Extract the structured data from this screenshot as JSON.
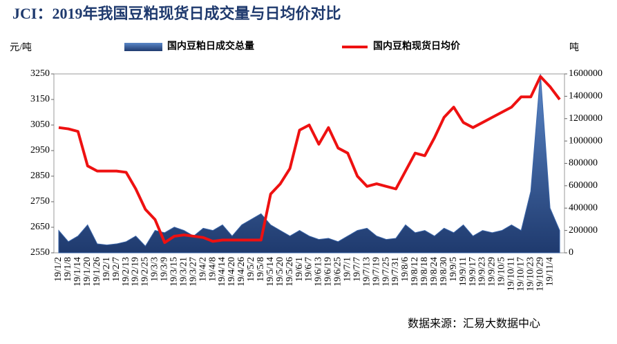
{
  "chart_data": {
    "type": "bar-line",
    "title": "JCI：2019年我国豆粕现货日成交量与日均价对比",
    "y_label": "元/吨",
    "y2_label": "吨",
    "source": "数据来源：汇易大数据中心",
    "categories": [
      "19/1/2",
      "19/1/8",
      "19/1/14",
      "19/1/20",
      "19/1/26",
      "19/2/1",
      "19/2/7",
      "19/2/13",
      "19/2/19",
      "19/2/25",
      "19/3/3",
      "19/3/9",
      "19/3/15",
      "19/3/21",
      "19/3/27",
      "19/4/2",
      "19/4/8",
      "19/4/14",
      "19/4/20",
      "19/4/26",
      "19/5/2",
      "19/5/8",
      "19/5/14",
      "19/5/20",
      "19/5/26",
      "19/6/1",
      "19/6/7",
      "19/6/13",
      "19/6/19",
      "19/6/25",
      "19/7/1",
      "19/7/7",
      "19/7/13",
      "19/7/19",
      "19/7/25",
      "19/7/31",
      "19/8/6",
      "19/8/12",
      "19/8/18",
      "19/8/24",
      "19/8/30",
      "19/9/5",
      "19/9/11",
      "19/9/17",
      "19/9/23",
      "19/9/29",
      "19/10/5",
      "19/10/11",
      "19/10/17",
      "19/10/23",
      "19/10/29",
      "19/11/4",
      null
    ],
    "series": [
      {
        "name": "国内豆粕现货日均价",
        "color": "#ee1111",
        "axis": "y",
        "values": [
          3040,
          3035,
          3025,
          2890,
          2870,
          2870,
          2870,
          2865,
          2800,
          2720,
          2680,
          2590,
          2615,
          2620,
          2615,
          2610,
          2595,
          2600,
          2600,
          2600,
          2600,
          2600,
          2780,
          2820,
          2880,
          3030,
          3050,
          2975,
          3040,
          2960,
          2940,
          2850,
          2810,
          2820,
          2810,
          2800,
          2870,
          2940,
          2930,
          3000,
          3080,
          3120,
          3060,
          3040,
          3060,
          3080,
          3100,
          3120,
          3160,
          3160,
          3240,
          3200,
          3150
        ]
      },
      {
        "name": "国内豆粕日成交总量",
        "color": "#1f3a6e",
        "axis": "y2",
        "values": [
          200000,
          100000,
          150000,
          250000,
          80000,
          70000,
          80000,
          100000,
          150000,
          60000,
          200000,
          180000,
          230000,
          200000,
          150000,
          220000,
          200000,
          250000,
          150000,
          250000,
          300000,
          350000,
          250000,
          200000,
          150000,
          200000,
          150000,
          120000,
          130000,
          100000,
          150000,
          200000,
          220000,
          150000,
          120000,
          130000,
          250000,
          180000,
          200000,
          150000,
          220000,
          180000,
          250000,
          150000,
          200000,
          180000,
          200000,
          250000,
          200000,
          550000,
          1600000,
          400000,
          200000
        ]
      }
    ],
    "ylim": [
      2550,
      3250
    ],
    "yticks": [
      2550,
      2650,
      2750,
      2850,
      2950,
      3050,
      3150,
      3250
    ],
    "y2lim": [
      0,
      1600000
    ],
    "y2ticks": [
      0,
      200000,
      400000,
      600000,
      800000,
      1000000,
      1200000,
      1400000,
      1600000
    ]
  }
}
